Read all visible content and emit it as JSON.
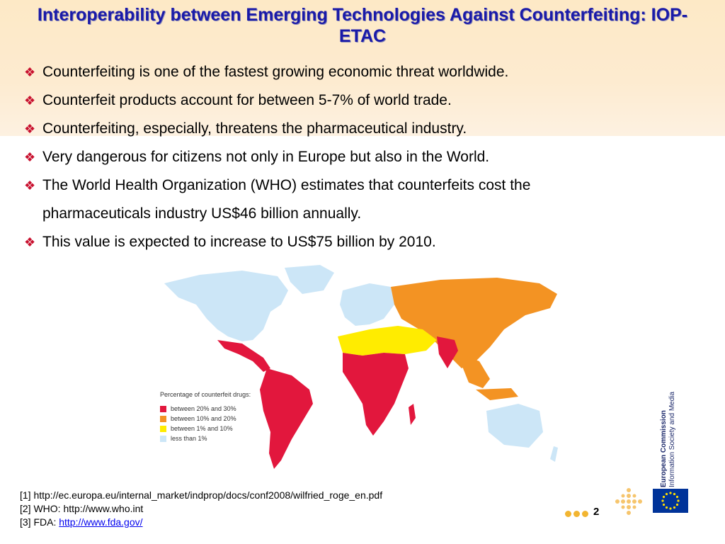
{
  "title": "Interoperability between Emerging Technologies Against Counterfeiting: IOP-ETAC",
  "bullet_mark": "❖",
  "bullets": [
    {
      "text": "Counterfeiting is one of the fastest growing economic threat worldwide."
    },
    {
      "text": "Counterfeit products account for between 5-7% of world trade."
    },
    {
      "text": "Counterfeiting, especially, threatens the pharmaceutical industry."
    },
    {
      "text": "Very dangerous for citizens not only in Europe but also in the World."
    },
    {
      "text": "The World Health Organization (WHO) estimates that counterfeits cost the",
      "cont": "pharmaceuticals industry US$46 billion annually."
    },
    {
      "text": "This value is expected to increase to US$75 billion by 2010."
    }
  ],
  "map": {
    "legend_title": "Percentage of counterfeit drugs:",
    "legend": [
      {
        "label": "between 20% and 30%",
        "color": "#e2173d"
      },
      {
        "label": "between 10% and 20%",
        "color": "#f39323"
      },
      {
        "label": "between 1% and 10%",
        "color": "#ffec00"
      },
      {
        "label": "less than 1%",
        "color": "#cce6f7"
      }
    ]
  },
  "references": {
    "ref1": "[1] http://ec.europa.eu/internal_market/indprop/docs/conf2008/wilfried_roge_en.pdf",
    "ref2": "[2]  WHO: http://www.who.int",
    "ref3_prefix": "[3] FDA: ",
    "ref3_link": "http://www.fda.gov/"
  },
  "footer": {
    "page_number": "2",
    "ec_line1": "European Commission",
    "ec_line2": "Information Society and Media"
  }
}
